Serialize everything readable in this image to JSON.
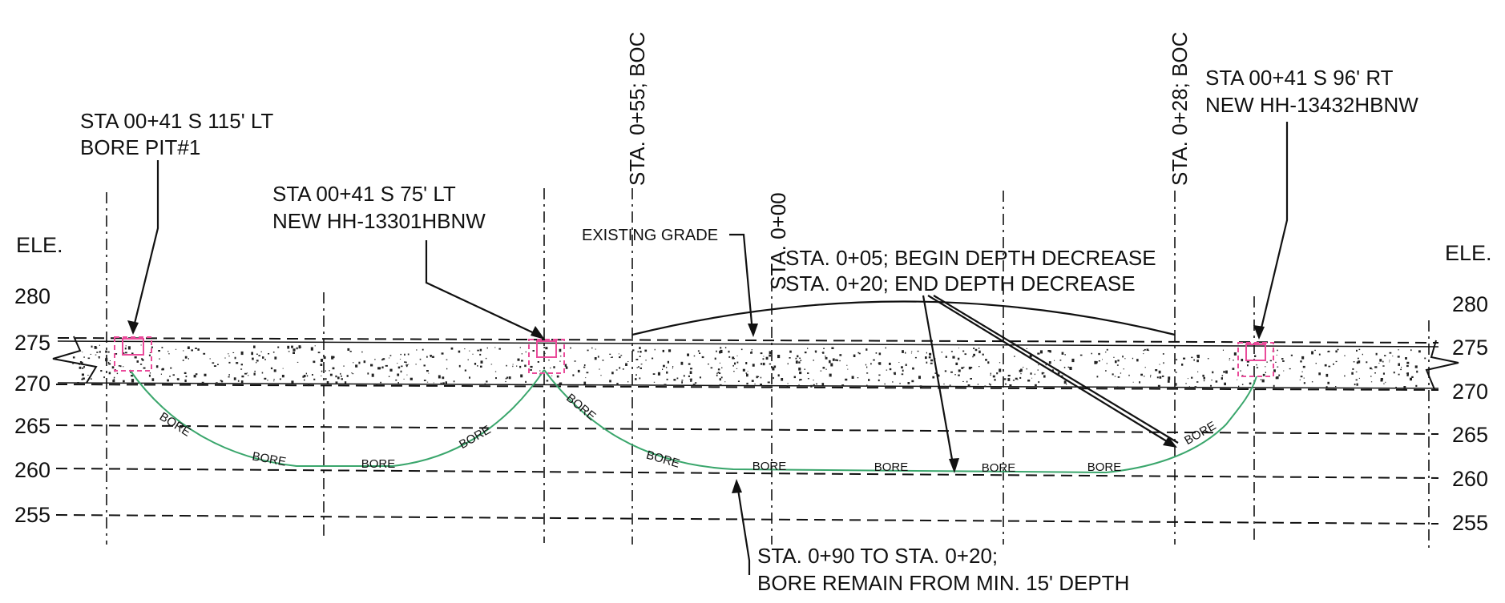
{
  "elevation": {
    "left_label": "ELE.",
    "right_label": "ELE.",
    "left_ticks": [
      "280",
      "275",
      "270",
      "265",
      "260",
      "255"
    ],
    "right_ticks": [
      "280",
      "275",
      "270",
      "265",
      "260",
      "255"
    ]
  },
  "callouts": {
    "bore_pit_station": "STA 00+41 S 115' LT",
    "bore_pit_name": "BORE PIT#1",
    "hh_left_station": "STA 00+41 S 75' LT",
    "hh_left_name": "NEW HH-13301HBNW",
    "hh_right_station": "STA 00+41 S 96' RT",
    "hh_right_name": "NEW HH-13432HBNW",
    "existing_grade": "EXISTING GRADE",
    "depth_begin": "STA. 0+05; BEGIN DEPTH DECREASE",
    "depth_end": "STA. 0+20; END DEPTH DECREASE",
    "bore_note_line1": "STA. 0+90 TO STA. 0+20;",
    "bore_note_line2": "BORE REMAIN FROM MIN. 15' DEPTH"
  },
  "stations": {
    "boc_left": "STA. 0+55; BOC",
    "sta_zero": "STA. 0+00",
    "boc_right": "STA. 0+28; BOC"
  },
  "bore_label": "BORE",
  "colors": {
    "bore": "#3aa66c",
    "pit": "#ea4b9a",
    "linework": "#111111"
  }
}
